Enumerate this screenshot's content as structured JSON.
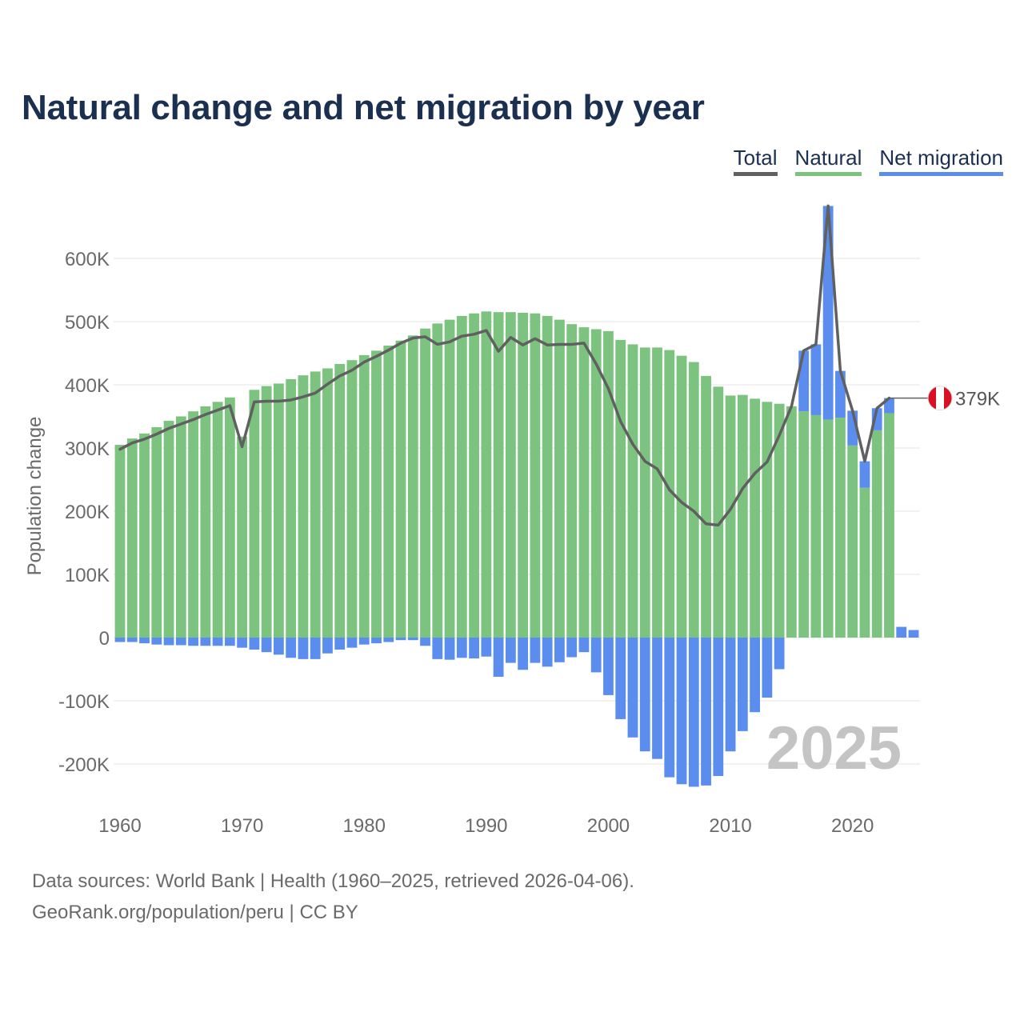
{
  "title": "Natural change and net migration by year",
  "legend": {
    "total": "Total",
    "natural": "Natural",
    "migration": "Net migration"
  },
  "colors": {
    "natural": "#7cc37f",
    "migration": "#5b8def",
    "total": "#606060",
    "title": "#1b3050",
    "grid": "#e6e6e6",
    "watermark": "#c4c4c4",
    "flag_red": "#d91023"
  },
  "footer": {
    "line1": "Data sources: World Bank | Health (1960–2025, retrieved 2026-04-06).",
    "line2": "GeoRank.org/population/peru | CC BY"
  },
  "chart_data": {
    "type": "bar",
    "stacked": true,
    "title": "Natural change and net migration by year",
    "ylabel": "Population change",
    "xlabel": "",
    "ylim": [
      -260000,
      700000
    ],
    "yticks": [
      -200000,
      -100000,
      0,
      100000,
      200000,
      300000,
      400000,
      500000,
      600000
    ],
    "ytick_labels": [
      "-200K",
      "-100K",
      "0",
      "100K",
      "200K",
      "300K",
      "400K",
      "500K",
      "600K"
    ],
    "xlim": [
      1960,
      2025
    ],
    "xticks": [
      1960,
      1970,
      1980,
      1990,
      2000,
      2010,
      2020
    ],
    "xtick_labels": [
      "1960",
      "1970",
      "1980",
      "1990",
      "2000",
      "2010",
      "2020"
    ],
    "watermark": "2025",
    "end_label": "379K",
    "years": [
      1960,
      1961,
      1962,
      1963,
      1964,
      1965,
      1966,
      1967,
      1968,
      1969,
      1970,
      1971,
      1972,
      1973,
      1974,
      1975,
      1976,
      1977,
      1978,
      1979,
      1980,
      1981,
      1982,
      1983,
      1984,
      1985,
      1986,
      1987,
      1988,
      1989,
      1990,
      1991,
      1992,
      1993,
      1994,
      1995,
      1996,
      1997,
      1998,
      1999,
      2000,
      2001,
      2002,
      2003,
      2004,
      2005,
      2006,
      2007,
      2008,
      2009,
      2010,
      2011,
      2012,
      2013,
      2014,
      2015,
      2016,
      2017,
      2018,
      2019,
      2020,
      2021,
      2022,
      2023,
      2024,
      2025
    ],
    "series": [
      {
        "name": "Natural",
        "values": [
          305000,
          315000,
          323000,
          333000,
          343000,
          350000,
          358000,
          366000,
          373000,
          380000,
          318000,
          392000,
          398000,
          402000,
          409000,
          415000,
          421000,
          426000,
          433000,
          439000,
          447000,
          454000,
          462000,
          470000,
          478000,
          489000,
          497000,
          503000,
          509000,
          513000,
          516000,
          515000,
          515000,
          514000,
          513000,
          509000,
          503000,
          496000,
          491000,
          488000,
          485000,
          471000,
          464000,
          459000,
          459000,
          455000,
          446000,
          436000,
          414000,
          397000,
          383000,
          384000,
          378000,
          373000,
          370000,
          366000,
          358000,
          352000,
          345000,
          348000,
          304000,
          237000,
          328000,
          355000,
          0,
          0
        ]
      },
      {
        "name": "Net migration",
        "values": [
          -7000,
          -7000,
          -9000,
          -11000,
          -12000,
          -12000,
          -13000,
          -13000,
          -13000,
          -13000,
          -16000,
          -19000,
          -23000,
          -27000,
          -32000,
          -34000,
          -34000,
          -25000,
          -19000,
          -16000,
          -11000,
          -9000,
          -7000,
          -4000,
          -4000,
          -13000,
          -34000,
          -35000,
          -32000,
          -33000,
          -30000,
          -62000,
          -40000,
          -51000,
          -40000,
          -46000,
          -39000,
          -31000,
          -23000,
          -55000,
          -91000,
          -129000,
          -158000,
          -180000,
          -192000,
          -221000,
          -232000,
          -236000,
          -234000,
          -219000,
          -180000,
          -148000,
          -118000,
          -95000,
          -50000,
          0,
          96000,
          112000,
          338000,
          74000,
          55000,
          42000,
          35000,
          24000,
          17000,
          12000
        ]
      },
      {
        "name": "Total",
        "values": [
          298000,
          308000,
          314000,
          322000,
          331000,
          338000,
          345000,
          353000,
          360000,
          367000,
          302000,
          373000,
          374000,
          374000,
          376000,
          381000,
          387000,
          401000,
          414000,
          423000,
          436000,
          445000,
          455000,
          466000,
          474000,
          476000,
          464000,
          468000,
          477000,
          480000,
          486000,
          453000,
          475000,
          463000,
          473000,
          463000,
          464000,
          464000,
          466000,
          433000,
          394000,
          342000,
          306000,
          279000,
          267000,
          234000,
          214000,
          200000,
          180000,
          178000,
          203000,
          236000,
          260000,
          278000,
          320000,
          366000,
          454000,
          464000,
          683000,
          422000,
          359000,
          279000,
          363000,
          379000,
          null,
          null
        ]
      }
    ]
  }
}
